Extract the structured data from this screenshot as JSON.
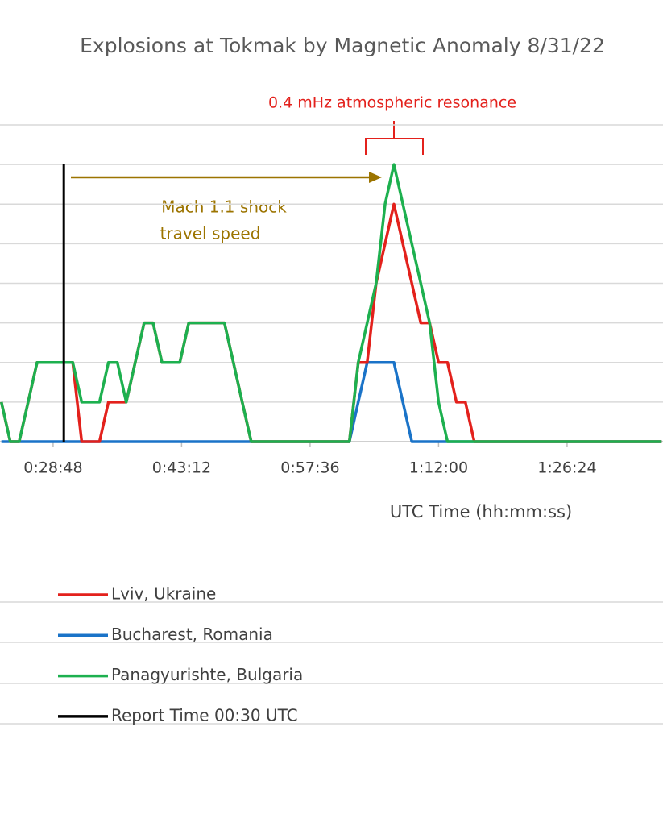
{
  "chart_data": {
    "type": "line",
    "title": "Explosions at Tokmak by Magnetic Anomaly 8/31/22",
    "x_label": "UTC Time (hh:mm:ss)",
    "annotations": [
      "0.4 mHz atmospheric resonance",
      "Mach 1.1 shock",
      "travel speed"
    ],
    "x": [
      1380,
      1440,
      1500,
      1560,
      1620,
      1680,
      1740,
      1800,
      1860,
      1920,
      1980,
      2040,
      2100,
      2160,
      2220,
      2280,
      2340,
      2400,
      2460,
      2520,
      2580,
      2640,
      2700,
      2760,
      2820,
      2880,
      2940,
      3000,
      3060,
      3120,
      3180,
      3240,
      3300,
      3360,
      3420,
      3480,
      3540,
      3600,
      3660,
      3720,
      3780,
      3840,
      3900,
      3960,
      4020,
      4080,
      4140,
      4200,
      4260,
      4320,
      4380,
      4440,
      4500,
      4560,
      5820
    ],
    "series": [
      {
        "name": "Lviv, Ukraine",
        "color": "#e3211c",
        "values": [
          1,
          0,
          0,
          1,
          2,
          2,
          2,
          2,
          2,
          0,
          0,
          0,
          1,
          1,
          1,
          2,
          3,
          3,
          2,
          2,
          2,
          3,
          3,
          3,
          3,
          3,
          2,
          1,
          0,
          0,
          0,
          0,
          0,
          0,
          0,
          0,
          0,
          0,
          0,
          0,
          2,
          2,
          4,
          5,
          6,
          5,
          4,
          3,
          3,
          2,
          2,
          1,
          1,
          0,
          0
        ]
      },
      {
        "name": "Bucharest, Romania",
        "color": "#1a73c8",
        "values": [
          0,
          0,
          0,
          0,
          0,
          0,
          0,
          0,
          0,
          0,
          0,
          0,
          0,
          0,
          0,
          0,
          0,
          0,
          0,
          0,
          0,
          0,
          0,
          0,
          0,
          0,
          0,
          0,
          0,
          0,
          0,
          0,
          0,
          0,
          0,
          0,
          0,
          0,
          0,
          0,
          1,
          2,
          2,
          2,
          2,
          1,
          0,
          0,
          0,
          0,
          0,
          0,
          0,
          0,
          0
        ]
      },
      {
        "name": "Panagyurishte, Bulgaria",
        "color": "#1db04f",
        "values": [
          1,
          0,
          0,
          1,
          2,
          2,
          2,
          2,
          2,
          1,
          1,
          1,
          2,
          2,
          1,
          2,
          3,
          3,
          2,
          2,
          2,
          3,
          3,
          3,
          3,
          3,
          2,
          1,
          0,
          0,
          0,
          0,
          0,
          0,
          0,
          0,
          0,
          0,
          0,
          0,
          2,
          3,
          4,
          6,
          7,
          6,
          5,
          4,
          3,
          1,
          0,
          0,
          0,
          0,
          0
        ]
      }
    ],
    "markers": [
      {
        "name": "Report Time 00:30 UTC",
        "color": "#000000",
        "x": 1800
      }
    ],
    "xlim": [
      1371,
      5829
    ],
    "xticks": [
      {
        "value": 1728,
        "label": "0:28:48"
      },
      {
        "value": 2592,
        "label": "0:43:12"
      },
      {
        "value": 3456,
        "label": "0:57:36"
      },
      {
        "value": 4320,
        "label": "1:12:00"
      },
      {
        "value": 5184,
        "label": "1:26:24"
      }
    ],
    "ylim": [
      0,
      8
    ],
    "yticks": [
      0,
      1,
      2,
      3,
      4,
      5,
      6,
      7,
      8
    ],
    "grid": true
  }
}
